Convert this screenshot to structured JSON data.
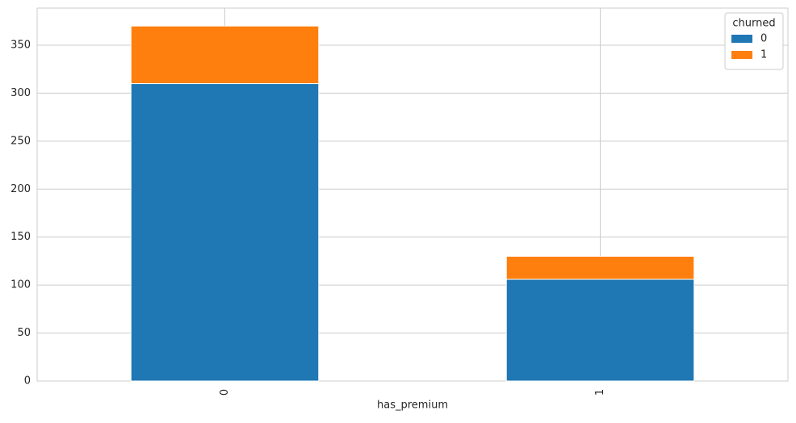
{
  "chart_data": {
    "type": "stacked_bar",
    "categories": [
      "0",
      "1"
    ],
    "x_label": "has_premium",
    "legend_title": "churned",
    "legend_position": "upper right",
    "series": [
      {
        "name": "0",
        "color": "#1f77b4",
        "values": [
          310,
          106
        ]
      },
      {
        "name": "1",
        "color": "#ff7f0e",
        "values": [
          60,
          24
        ]
      }
    ],
    "ylim": [
      0,
      388.7
    ],
    "yticks": [
      0,
      50,
      100,
      150,
      200,
      250,
      300,
      350
    ],
    "grid": true
  }
}
